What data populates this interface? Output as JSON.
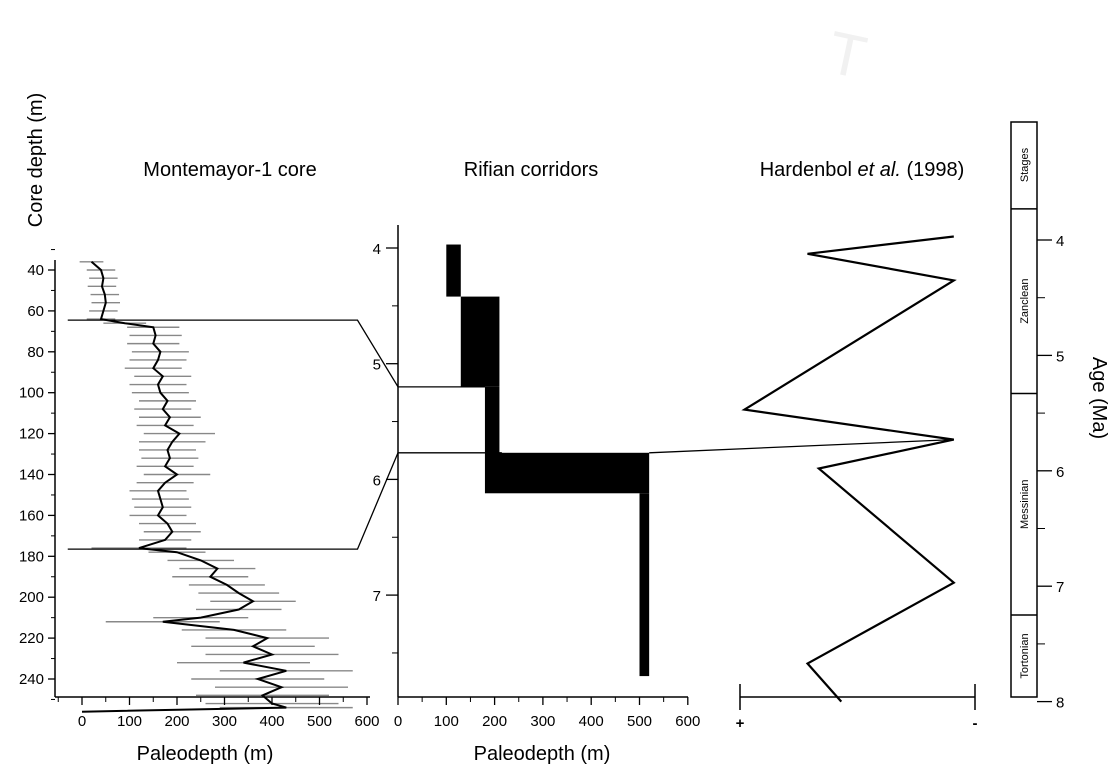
{
  "watermark": "T",
  "panels": {
    "core": {
      "title": "Montemayor-1 core",
      "ylabel": "Core depth (m)",
      "xlabel": "Paleodepth (m)"
    },
    "rifian": {
      "title": "Rifian corridors",
      "xlabel": "Paleodepth (m)"
    },
    "hardenbol": {
      "title_main": "Hardenbol ",
      "title_italic": "et al.",
      "title_tail": " (1998)",
      "plus": "+",
      "minus": "-"
    }
  },
  "age_axis": {
    "label": "Age (Ma)",
    "stages_header": "Stages"
  },
  "chart_data": [
    {
      "id": "core",
      "type": "line",
      "title": "Montemayor-1 core",
      "xlabel": "Paleodepth (m)",
      "ylabel": "Core depth (m)",
      "xlim": [
        -50,
        600
      ],
      "ylim": [
        36,
        256
      ],
      "x_ticks": [
        0,
        100,
        200,
        300,
        400,
        500,
        600
      ],
      "y_ticks": [
        40,
        60,
        80,
        100,
        120,
        140,
        160,
        180,
        200,
        220,
        240
      ],
      "series": [
        {
          "core_depth": [
            36,
            40,
            44,
            48,
            52,
            56,
            60,
            64,
            66,
            68,
            72,
            76,
            80,
            84,
            88,
            92,
            96,
            100,
            104,
            108,
            112,
            116,
            120,
            124,
            128,
            132,
            136,
            140,
            144,
            148,
            152,
            156,
            160,
            164,
            168,
            172,
            176,
            178,
            182,
            186,
            190,
            194,
            198,
            202,
            206,
            210,
            212,
            216,
            220,
            224,
            228,
            232,
            236,
            240,
            244,
            248,
            252,
            254,
            256
          ],
          "paleodepth": [
            20,
            40,
            45,
            42,
            48,
            50,
            45,
            40,
            90,
            150,
            155,
            150,
            165,
            160,
            150,
            170,
            160,
            165,
            180,
            170,
            185,
            175,
            205,
            190,
            180,
            185,
            175,
            200,
            175,
            160,
            165,
            170,
            160,
            180,
            190,
            175,
            120,
            200,
            250,
            285,
            270,
            305,
            330,
            360,
            330,
            250,
            170,
            320,
            390,
            360,
            400,
            340,
            430,
            370,
            420,
            380,
            400,
            430,
            0
          ],
          "error": [
            25,
            30,
            30,
            30,
            30,
            30,
            30,
            30,
            45,
            55,
            55,
            55,
            60,
            60,
            60,
            60,
            60,
            60,
            60,
            60,
            65,
            60,
            75,
            70,
            60,
            60,
            60,
            70,
            60,
            60,
            60,
            60,
            60,
            60,
            60,
            55,
            100,
            60,
            70,
            80,
            80,
            80,
            85,
            90,
            90,
            100,
            120,
            110,
            130,
            130,
            140,
            140,
            140,
            140,
            140,
            140,
            140,
            140,
            0
          ]
        }
      ]
    },
    {
      "id": "rifian",
      "type": "area",
      "title": "Rifian corridors",
      "xlabel": "Paleodepth (m)",
      "xlim": [
        0,
        600
      ],
      "ylim": [
        3.85,
        8
      ],
      "x_ticks": [
        0,
        100,
        200,
        300,
        400,
        500,
        600
      ],
      "y_ticks": [
        4,
        5,
        6,
        7
      ],
      "intervals": [
        {
          "age": [
            3.97,
            4.42
          ],
          "range": [
            100,
            130
          ]
        },
        {
          "age": [
            4.42,
            5.2
          ],
          "range": [
            130,
            210
          ]
        },
        {
          "age": [
            5.2,
            5.77
          ],
          "range": [
            180,
            210
          ]
        },
        {
          "age": [
            5.77,
            6.12
          ],
          "range": [
            180,
            520
          ]
        },
        {
          "age": [
            6.12,
            7.7
          ],
          "range": [
            500,
            520
          ]
        }
      ]
    },
    {
      "id": "hardenbol",
      "type": "line",
      "title": "Hardenbol et al. (1998)",
      "xlabel_left": "+",
      "xlabel_right": "-",
      "ylim": [
        3.85,
        8
      ],
      "series": [
        {
          "age": [
            3.97,
            4.12,
            4.35,
            5.47,
            5.73,
            5.98,
            6.97,
            7.67,
            8.0
          ],
          "relative_level": [
            0.95,
            0.3,
            0.95,
            0.02,
            0.95,
            0.35,
            0.95,
            0.3,
            0.45
          ]
        }
      ]
    },
    {
      "id": "age_scale",
      "type": "table",
      "ylabel": "Age (Ma)",
      "y_ticks": [
        4,
        5,
        6,
        7,
        8
      ],
      "stages": [
        {
          "name": "Zanclean",
          "age": [
            3.73,
            5.33
          ]
        },
        {
          "name": "Messinian",
          "age": [
            5.33,
            7.25
          ]
        },
        {
          "name": "Tortonian",
          "age": [
            7.25,
            8.0
          ]
        }
      ]
    }
  ],
  "correlations": [
    {
      "core_depth": 64.5,
      "age": 5.2
    },
    {
      "core_depth": 176.5,
      "age": 5.77
    },
    {
      "age": 5.77,
      "to_age": 5.73
    }
  ]
}
